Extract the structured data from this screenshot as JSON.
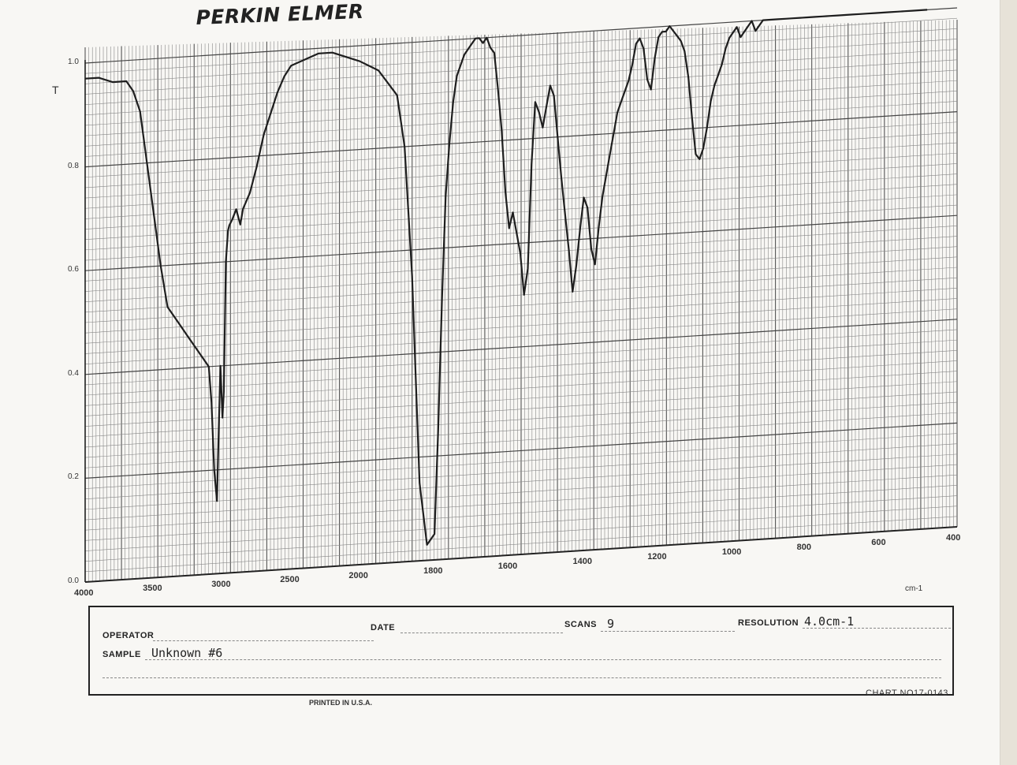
{
  "header": {
    "brand": "PERKIN ELMER"
  },
  "chart_data": {
    "type": "line",
    "title": "",
    "xlabel": "cm-1",
    "ylabel": "T",
    "xlim": [
      4000,
      400
    ],
    "ylim": [
      0.0,
      1.0
    ],
    "grid": true,
    "x_ticks": [
      "4000",
      "3500",
      "3000",
      "2500",
      "2000",
      "1800",
      "1600",
      "1400",
      "1200",
      "1000",
      "800",
      "600",
      "400"
    ],
    "y_ticks": [
      "0.0",
      "0.2",
      "0.4",
      "0.6",
      "0.8",
      "1.0"
    ],
    "series": [
      {
        "x": [
          4000,
          3900,
          3800,
          3700,
          3650,
          3600,
          3550,
          3500,
          3450,
          3400,
          3350,
          3300,
          3250,
          3200,
          3150,
          3100,
          3080,
          3060,
          3040,
          3030,
          3015,
          3000,
          2990,
          2975,
          2960,
          2950,
          2930,
          2900,
          2870,
          2850,
          2800,
          2750,
          2700,
          2650,
          2600,
          2550,
          2500,
          2400,
          2300,
          2200,
          2100,
          2000,
          1950,
          1900,
          1880,
          1860,
          1850,
          1840,
          1820,
          1800,
          1790,
          1780,
          1770,
          1760,
          1750,
          1740,
          1730,
          1720,
          1710,
          1700,
          1690,
          1680,
          1670,
          1660,
          1650,
          1640,
          1630,
          1620,
          1610,
          1600,
          1590,
          1580,
          1570,
          1560,
          1550,
          1540,
          1530,
          1520,
          1510,
          1500,
          1490,
          1480,
          1470,
          1460,
          1450,
          1440,
          1430,
          1420,
          1410,
          1400,
          1390,
          1380,
          1370,
          1360,
          1350,
          1340,
          1330,
          1320,
          1310,
          1300,
          1290,
          1280,
          1270,
          1260,
          1250,
          1240,
          1230,
          1220,
          1210,
          1200,
          1190,
          1180,
          1170,
          1160,
          1150,
          1140,
          1130,
          1120,
          1110,
          1100,
          1090,
          1080,
          1070,
          1060,
          1050,
          1040,
          1030,
          1020,
          1010,
          1000,
          990,
          980,
          970,
          960,
          950,
          940,
          930,
          920,
          900,
          880,
          860,
          840,
          820,
          800,
          780,
          760,
          750,
          740,
          720,
          700,
          680,
          660,
          640,
          620,
          600,
          580,
          560,
          540,
          520,
          500,
          480
        ],
        "y": [
          0.97,
          0.97,
          0.96,
          0.96,
          0.94,
          0.9,
          0.8,
          0.7,
          0.6,
          0.52,
          0.5,
          0.48,
          0.46,
          0.44,
          0.42,
          0.4,
          0.33,
          0.2,
          0.14,
          0.25,
          0.4,
          0.3,
          0.35,
          0.6,
          0.66,
          0.67,
          0.68,
          0.7,
          0.67,
          0.7,
          0.73,
          0.78,
          0.84,
          0.88,
          0.92,
          0.95,
          0.97,
          0.98,
          0.99,
          0.99,
          0.98,
          0.97,
          0.95,
          0.9,
          0.8,
          0.55,
          0.35,
          0.15,
          0.03,
          0.05,
          0.25,
          0.5,
          0.7,
          0.8,
          0.88,
          0.93,
          0.95,
          0.97,
          0.98,
          0.99,
          1.0,
          1.0,
          0.99,
          1.0,
          0.98,
          0.97,
          0.9,
          0.82,
          0.7,
          0.63,
          0.66,
          0.62,
          0.58,
          0.5,
          0.55,
          0.75,
          0.87,
          0.85,
          0.82,
          0.86,
          0.9,
          0.88,
          0.8,
          0.72,
          0.65,
          0.58,
          0.5,
          0.55,
          0.62,
          0.68,
          0.66,
          0.58,
          0.55,
          0.62,
          0.68,
          0.72,
          0.76,
          0.8,
          0.84,
          0.86,
          0.88,
          0.9,
          0.93,
          0.97,
          0.98,
          0.96,
          0.9,
          0.88,
          0.94,
          0.98,
          0.99,
          0.99,
          1.0,
          0.99,
          0.98,
          0.97,
          0.95,
          0.9,
          0.82,
          0.75,
          0.74,
          0.76,
          0.8,
          0.85,
          0.88,
          0.9,
          0.92,
          0.95,
          0.97,
          0.98,
          0.99,
          0.97,
          0.98,
          0.99,
          1.0,
          0.98,
          0.99,
          1.0,
          1.0,
          1.0,
          1.0,
          1.0,
          1.0,
          1.0,
          1.0,
          1.0,
          1.0,
          1.0,
          1.0,
          1.0,
          1.0,
          1.0,
          1.0,
          1.0,
          1.0,
          1.0,
          1.0,
          1.0,
          1.0,
          1.0,
          1.0
        ]
      }
    ]
  },
  "form": {
    "operator_label": "OPERATOR",
    "date_label": "DATE",
    "scans_label": "SCANS",
    "scans_value": "9",
    "resolution_label": "RESOLUTION",
    "resolution_value": "4.0cm-1",
    "sample_label": "SAMPLE",
    "sample_value": "Unknown #6"
  },
  "footer": {
    "printed": "PRINTED IN U.S.A.",
    "chart_no": "CHART NO17-0143"
  }
}
